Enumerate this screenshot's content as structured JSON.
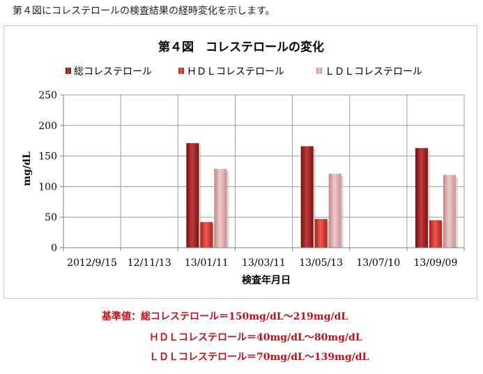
{
  "intro_text": "第４図にコレステロールの検査結果の経時変化を示します。",
  "chart_data": {
    "type": "bar",
    "title": "第４図　コレステロールの変化",
    "xlabel": "検査年月日",
    "ylabel": "mg/dL",
    "ylim": [
      0,
      250
    ],
    "yticks": [
      0,
      50,
      100,
      150,
      200,
      250
    ],
    "grid": true,
    "legend_position": "top",
    "categories": [
      "2012/9/15",
      "12/11/13",
      "13/01/11",
      "13/03/11",
      "13/05/13",
      "13/07/10",
      "13/09/09"
    ],
    "series": [
      {
        "name": "総コレステロール",
        "color": "#a01f1f",
        "values": [
          null,
          null,
          171,
          null,
          166,
          null,
          163
        ]
      },
      {
        "name": "ＨＤＬコレステロール",
        "color": "#d63a30",
        "values": [
          null,
          null,
          42,
          null,
          47,
          null,
          45
        ]
      },
      {
        "name": "ＬＤＬコレステロール",
        "color": "#dda2a2",
        "values": [
          null,
          null,
          129,
          null,
          121,
          null,
          119
        ]
      }
    ]
  },
  "notes": {
    "line1": "基準値：総コレステロール＝150mg/dL～219mg/dL",
    "line2": "ＨＤＬコレステロール＝40mg/dL～80mg/dL",
    "line3": "ＬＤＬコレステロール＝70mg/dL～139mg/dL"
  }
}
